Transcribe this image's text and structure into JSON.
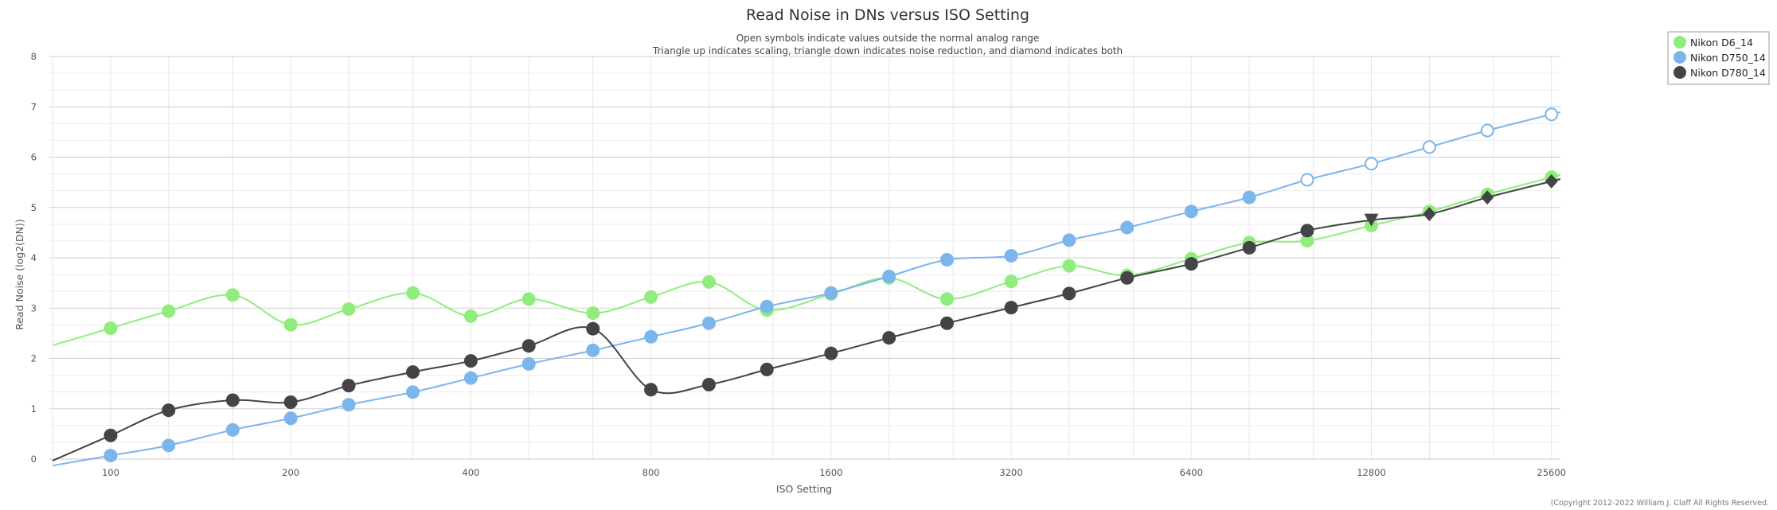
{
  "chart_data": {
    "type": "line",
    "title": "Read Noise in DNs versus ISO Setting",
    "subtitle_lines": [
      "Open symbols indicate values outside the normal analog range",
      "Triangle up indicates scaling, triangle down indicates noise reduction, and diamond indicates both"
    ],
    "xlabel": "ISO Setting",
    "ylabel": "Read Noise (log2(DN))",
    "x_scale": "log2",
    "x_range": [
      79,
      26500
    ],
    "ylim": [
      0,
      8
    ],
    "x_ticks": [
      100,
      200,
      400,
      800,
      1600,
      3200,
      6400,
      12800,
      25600
    ],
    "x_tick_labels": [
      "100",
      "200",
      "400",
      "800",
      "1600",
      "3200",
      "6400",
      "12800",
      "25600"
    ],
    "y_ticks": [
      0,
      1,
      2,
      3,
      4,
      5,
      6,
      7,
      8
    ],
    "y_tick_labels": [
      "0",
      "1",
      "2",
      "3",
      "4",
      "5",
      "6",
      "7",
      "8"
    ],
    "grid": true,
    "legend_position": "top-right",
    "credits": "(Copyright 2012-2022 William J. Claff All Rights Reserved.",
    "series": [
      {
        "name": "Nikon D6_14",
        "color": "#90ed7d",
        "points": [
          {
            "x": 100,
            "y": 2.6,
            "symbol": "circle"
          },
          {
            "x": 125,
            "y": 2.94,
            "symbol": "circle"
          },
          {
            "x": 160,
            "y": 3.26,
            "symbol": "circle"
          },
          {
            "x": 200,
            "y": 2.67,
            "symbol": "circle"
          },
          {
            "x": 250,
            "y": 2.98,
            "symbol": "circle"
          },
          {
            "x": 320,
            "y": 3.3,
            "symbol": "circle"
          },
          {
            "x": 400,
            "y": 2.84,
            "symbol": "circle"
          },
          {
            "x": 500,
            "y": 3.18,
            "symbol": "circle"
          },
          {
            "x": 640,
            "y": 2.9,
            "symbol": "circle"
          },
          {
            "x": 800,
            "y": 3.22,
            "symbol": "circle"
          },
          {
            "x": 1000,
            "y": 3.52,
            "symbol": "circle"
          },
          {
            "x": 1250,
            "y": 2.96,
            "symbol": "circle"
          },
          {
            "x": 1600,
            "y": 3.28,
            "symbol": "circle"
          },
          {
            "x": 2000,
            "y": 3.6,
            "symbol": "circle"
          },
          {
            "x": 2500,
            "y": 3.18,
            "symbol": "circle"
          },
          {
            "x": 3200,
            "y": 3.53,
            "symbol": "circle"
          },
          {
            "x": 4000,
            "y": 3.84,
            "symbol": "circle"
          },
          {
            "x": 5000,
            "y": 3.65,
            "symbol": "circle"
          },
          {
            "x": 6400,
            "y": 3.98,
            "symbol": "circle"
          },
          {
            "x": 8000,
            "y": 4.3,
            "symbol": "circle"
          },
          {
            "x": 10000,
            "y": 4.34,
            "symbol": "circle"
          },
          {
            "x": 12800,
            "y": 4.64,
            "symbol": "circle"
          },
          {
            "x": 16000,
            "y": 4.92,
            "symbol": "circle"
          },
          {
            "x": 20000,
            "y": 5.26,
            "symbol": "circle"
          },
          {
            "x": 25600,
            "y": 5.6,
            "symbol": "circle"
          }
        ]
      },
      {
        "name": "Nikon D750_14",
        "color": "#7cb5ec",
        "points": [
          {
            "x": 100,
            "y": 0.07,
            "symbol": "circle"
          },
          {
            "x": 125,
            "y": 0.27,
            "symbol": "circle"
          },
          {
            "x": 160,
            "y": 0.58,
            "symbol": "circle"
          },
          {
            "x": 200,
            "y": 0.81,
            "symbol": "circle"
          },
          {
            "x": 250,
            "y": 1.08,
            "symbol": "circle"
          },
          {
            "x": 320,
            "y": 1.33,
            "symbol": "circle"
          },
          {
            "x": 400,
            "y": 1.61,
            "symbol": "circle"
          },
          {
            "x": 500,
            "y": 1.89,
            "symbol": "circle"
          },
          {
            "x": 640,
            "y": 2.16,
            "symbol": "circle"
          },
          {
            "x": 800,
            "y": 2.43,
            "symbol": "circle"
          },
          {
            "x": 1000,
            "y": 2.7,
            "symbol": "circle"
          },
          {
            "x": 1250,
            "y": 3.03,
            "symbol": "circle"
          },
          {
            "x": 1600,
            "y": 3.3,
            "symbol": "circle"
          },
          {
            "x": 2000,
            "y": 3.63,
            "symbol": "circle"
          },
          {
            "x": 2500,
            "y": 3.96,
            "symbol": "circle"
          },
          {
            "x": 3200,
            "y": 4.04,
            "symbol": "circle"
          },
          {
            "x": 4000,
            "y": 4.35,
            "symbol": "circle"
          },
          {
            "x": 5000,
            "y": 4.6,
            "symbol": "circle"
          },
          {
            "x": 6400,
            "y": 4.92,
            "symbol": "circle"
          },
          {
            "x": 8000,
            "y": 5.2,
            "symbol": "circle"
          },
          {
            "x": 10000,
            "y": 5.55,
            "symbol": "open-circle"
          },
          {
            "x": 12800,
            "y": 5.87,
            "symbol": "open-circle"
          },
          {
            "x": 16000,
            "y": 6.2,
            "symbol": "open-circle"
          },
          {
            "x": 20000,
            "y": 6.53,
            "symbol": "open-circle"
          },
          {
            "x": 25600,
            "y": 6.85,
            "symbol": "open-circle"
          }
        ]
      },
      {
        "name": "Nikon D780_14",
        "color": "#434348",
        "points": [
          {
            "x": 100,
            "y": 0.47,
            "symbol": "circle"
          },
          {
            "x": 125,
            "y": 0.97,
            "symbol": "circle"
          },
          {
            "x": 160,
            "y": 1.17,
            "symbol": "circle"
          },
          {
            "x": 200,
            "y": 1.13,
            "symbol": "circle"
          },
          {
            "x": 250,
            "y": 1.46,
            "symbol": "circle"
          },
          {
            "x": 320,
            "y": 1.73,
            "symbol": "circle"
          },
          {
            "x": 400,
            "y": 1.95,
            "symbol": "circle"
          },
          {
            "x": 500,
            "y": 2.25,
            "symbol": "circle"
          },
          {
            "x": 640,
            "y": 2.59,
            "symbol": "circle"
          },
          {
            "x": 800,
            "y": 1.38,
            "symbol": "circle"
          },
          {
            "x": 1000,
            "y": 1.48,
            "symbol": "circle"
          },
          {
            "x": 1250,
            "y": 1.78,
            "symbol": "circle"
          },
          {
            "x": 1600,
            "y": 2.1,
            "symbol": "circle"
          },
          {
            "x": 2000,
            "y": 2.41,
            "symbol": "circle"
          },
          {
            "x": 2500,
            "y": 2.7,
            "symbol": "circle"
          },
          {
            "x": 3200,
            "y": 3.01,
            "symbol": "circle"
          },
          {
            "x": 4000,
            "y": 3.29,
            "symbol": "circle"
          },
          {
            "x": 5000,
            "y": 3.6,
            "symbol": "circle"
          },
          {
            "x": 6400,
            "y": 3.88,
            "symbol": "circle"
          },
          {
            "x": 8000,
            "y": 4.2,
            "symbol": "circle"
          },
          {
            "x": 10000,
            "y": 4.54,
            "symbol": "circle"
          },
          {
            "x": 12800,
            "y": 4.75,
            "symbol": "triangle-down"
          },
          {
            "x": 16000,
            "y": 4.87,
            "symbol": "diamond"
          },
          {
            "x": 20000,
            "y": 5.2,
            "symbol": "diamond"
          },
          {
            "x": 25600,
            "y": 5.52,
            "symbol": "diamond"
          }
        ]
      }
    ]
  }
}
